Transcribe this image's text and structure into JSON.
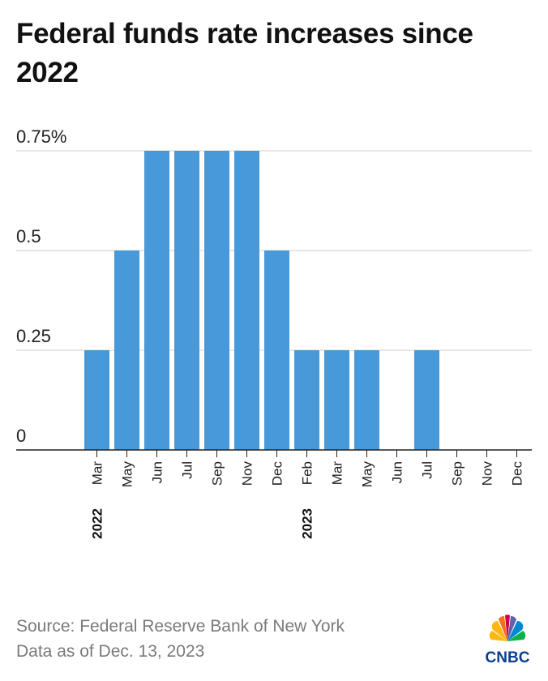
{
  "chart_data": {
    "type": "bar",
    "title": "Federal funds rate increases since 2022",
    "categories": [
      "Mar",
      "May",
      "Jun",
      "Jul",
      "Sep",
      "Nov",
      "Dec",
      "Feb",
      "Mar",
      "May",
      "Jun",
      "Jul",
      "Sep",
      "Nov",
      "Dec"
    ],
    "years": [
      {
        "label": "2022",
        "category_index": 0
      },
      {
        "label": "2023",
        "category_index": 7
      }
    ],
    "values": [
      0.25,
      0.5,
      0.75,
      0.75,
      0.75,
      0.75,
      0.5,
      0.25,
      0.25,
      0.25,
      0,
      0.25,
      0,
      0,
      0
    ],
    "ylim": [
      0,
      0.75
    ],
    "yticks": [
      {
        "value": 0,
        "label": "0"
      },
      {
        "value": 0.25,
        "label": "0.25"
      },
      {
        "value": 0.5,
        "label": "0.5"
      },
      {
        "value": 0.75,
        "label": "0.75%"
      }
    ],
    "grid": true,
    "xlabel": "",
    "ylabel": "",
    "bar_color": "#4799d9"
  },
  "footer": {
    "source": "Source: Federal Reserve Bank of New York",
    "date_note": "Data as of Dec. 13, 2023"
  },
  "logo": {
    "text": "CNBC",
    "icon": "nbc-peacock-icon"
  }
}
